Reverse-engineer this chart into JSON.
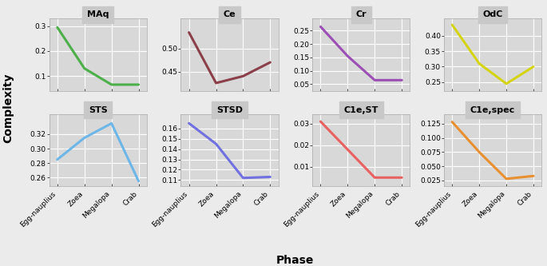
{
  "phases": [
    "Egg-nauplius",
    "Zoea",
    "Megalopa",
    "Crab"
  ],
  "subplots": [
    {
      "title": "MAq",
      "color": "#4daf4a",
      "values": [
        0.295,
        0.13,
        0.065,
        0.065
      ],
      "yticks": [
        0.1,
        0.2,
        0.3
      ],
      "ylim": [
        0.04,
        0.33
      ]
    },
    {
      "title": "Ce",
      "color": "#8b4049",
      "values": [
        0.535,
        0.425,
        0.44,
        0.47
      ],
      "yticks": [
        0.45,
        0.5
      ],
      "ylim": [
        0.408,
        0.565
      ]
    },
    {
      "title": "Cr",
      "color": "#9b4fb5",
      "values": [
        0.265,
        0.155,
        0.065,
        0.065
      ],
      "yticks": [
        0.05,
        0.1,
        0.15,
        0.2,
        0.25
      ],
      "ylim": [
        0.025,
        0.295
      ]
    },
    {
      "title": "OdC",
      "color": "#d4d414",
      "values": [
        0.435,
        0.31,
        0.245,
        0.3
      ],
      "yticks": [
        0.25,
        0.3,
        0.35,
        0.4
      ],
      "ylim": [
        0.222,
        0.455
      ]
    },
    {
      "title": "STS",
      "color": "#6db6e8",
      "values": [
        0.285,
        0.315,
        0.335,
        0.255
      ],
      "yticks": [
        0.26,
        0.28,
        0.3,
        0.32
      ],
      "ylim": [
        0.248,
        0.348
      ]
    },
    {
      "title": "STSD",
      "color": "#7070e0",
      "values": [
        0.165,
        0.145,
        0.112,
        0.113
      ],
      "yticks": [
        0.11,
        0.12,
        0.13,
        0.14,
        0.15,
        0.16
      ],
      "ylim": [
        0.104,
        0.174
      ]
    },
    {
      "title": "C1e,ST",
      "color": "#e86060",
      "values": [
        0.031,
        0.018,
        0.005,
        0.005
      ],
      "yticks": [
        0.01,
        0.02,
        0.03
      ],
      "ylim": [
        0.001,
        0.0345
      ]
    },
    {
      "title": "C1e,spec",
      "color": "#e89030",
      "values": [
        0.128,
        0.075,
        0.028,
        0.033
      ],
      "yticks": [
        0.025,
        0.05,
        0.075,
        0.1,
        0.125
      ],
      "ylim": [
        0.015,
        0.142
      ]
    }
  ],
  "background_color": "#ebebeb",
  "panel_bg": "#d8d8d8",
  "strip_bg": "#c8c8c8",
  "grid_color": "#ffffff",
  "ylabel": "Complexity",
  "xlabel": "Phase",
  "title_fontsize": 8,
  "label_fontsize": 10,
  "tick_fontsize": 6.5,
  "line_width": 2.2
}
